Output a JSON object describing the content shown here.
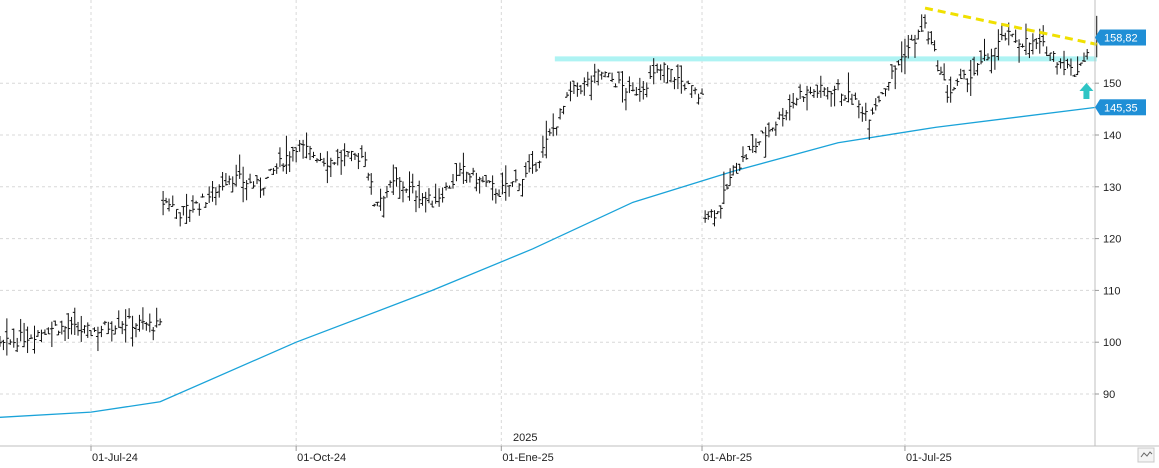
{
  "chart_data": {
    "type": "line",
    "title": "",
    "xlabel": "",
    "ylabel": "",
    "ylim": [
      80,
      165
    ],
    "y_ticks": [
      90,
      100,
      110,
      120,
      130,
      140,
      150
    ],
    "x_tick_labels": [
      "01-Jul-24",
      "01-Oct-24",
      "01-Ene-25",
      "01-Abr-25",
      "01-Jul-25"
    ],
    "year_label": "2025",
    "grid": true,
    "last_price_label": "158,82",
    "moving_average_label": "145,35",
    "series": [
      {
        "style": "ohlc-bars",
        "x": [
          "2024-05-01",
          "2024-05-15",
          "2024-06-01",
          "2024-06-15",
          "2024-07-01",
          "2024-07-15",
          "2024-08-01",
          "2024-08-05",
          "2024-08-10",
          "2024-08-20",
          "2024-09-01",
          "2024-09-15",
          "2024-10-01",
          "2024-10-15",
          "2024-11-01",
          "2024-11-05",
          "2024-11-15",
          "2024-12-01",
          "2024-12-15",
          "2024-12-31",
          "2025-01-15",
          "2025-02-01",
          "2025-02-15",
          "2025-03-01",
          "2025-03-15",
          "2025-04-01",
          "2025-04-08",
          "2025-04-15",
          "2025-05-01",
          "2025-05-15",
          "2025-06-01",
          "2025-06-15",
          "2025-07-01",
          "2025-07-10",
          "2025-07-20",
          "2025-08-01",
          "2025-08-15",
          "2025-09-01",
          "2025-09-15",
          "2025-09-25"
        ],
        "values": [
          105,
          98,
          101,
          103,
          102,
          104,
          103,
          127,
          125,
          127,
          132,
          130,
          138,
          135,
          136,
          127,
          131,
          127,
          133,
          129,
          133,
          148,
          152,
          148,
          153,
          147,
          125,
          133,
          141,
          148,
          149,
          144,
          156,
          161,
          148,
          152,
          159,
          157,
          152,
          158.82
        ]
      },
      {
        "style": "line",
        "color": "#1aa3d9",
        "x": [
          "2024-05-01",
          "2024-07-01",
          "2024-08-01",
          "2024-10-01",
          "2024-12-01",
          "2025-01-15",
          "2025-03-01",
          "2025-04-15",
          "2025-06-01",
          "2025-07-15",
          "2025-09-25"
        ],
        "values": [
          85,
          86.5,
          88.5,
          100,
          110,
          118,
          127,
          133,
          138.5,
          141.5,
          145.35
        ]
      }
    ],
    "annotations": [
      {
        "type": "resistance-line",
        "color": "#aef3f3",
        "from": "2025-01-25",
        "to": "2025-09-25",
        "value": 154.7
      },
      {
        "type": "trendline",
        "color": "#f0e000",
        "from": [
          "2025-07-10",
          164.5
        ],
        "to": [
          "2025-09-25",
          157.5
        ]
      },
      {
        "type": "up-arrow",
        "color": "#2ec4c4",
        "at": [
          "2025-09-15",
          148.5
        ]
      }
    ],
    "tag_colors": {
      "last_price": "#1f8fd6",
      "moving_average": "#1f8fd6"
    }
  }
}
